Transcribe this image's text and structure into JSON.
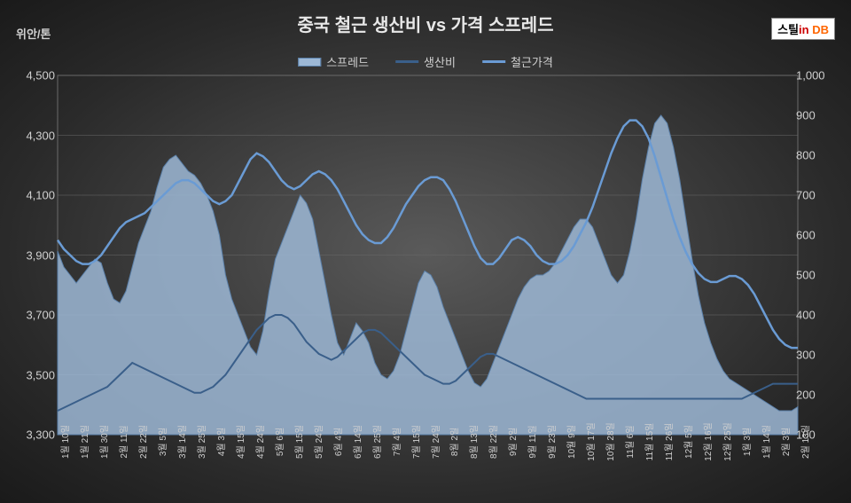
{
  "title": "중국 철근 생산비 vs 가격 스프레드",
  "y_label": "위안/톤",
  "logo": {
    "black": "스틸",
    "red": "in",
    "orange": "DB"
  },
  "legend": [
    {
      "label": "스프레드",
      "type": "area",
      "fill": "#9db8d6",
      "stroke": "#5a7fa8"
    },
    {
      "label": "생산비",
      "type": "line",
      "color": "#3a5f8a"
    },
    {
      "label": "철근가격",
      "type": "line",
      "color": "#6a9bd4"
    }
  ],
  "chart": {
    "type": "dual-axis-area-line",
    "background_gradient": [
      "#5a5a5a",
      "#2a2a2a",
      "#1a1a1a"
    ],
    "grid_color": "#6a6a6a",
    "grid_width": 0.5,
    "text_color": "#d0d0d0",
    "title_fontsize": 20,
    "label_fontsize": 13,
    "xtick_fontsize": 10,
    "left_axis": {
      "min": 3300,
      "max": 4500,
      "step": 200
    },
    "right_axis": {
      "min": 100,
      "max": 1000,
      "step": 100
    },
    "x_labels": [
      "1월 10일",
      "1월 21일",
      "1월 30일",
      "2월 11일",
      "2월 22일",
      "3월 5일",
      "3월 14일",
      "3월 25일",
      "4월 3일",
      "4월 15일",
      "4월 24일",
      "5월 6일",
      "5월 15일",
      "5월 24일",
      "6월 4일",
      "6월 14일",
      "6월 25일",
      "7월 4일",
      "7월 15일",
      "7월 24일",
      "8월 2일",
      "8월 13일",
      "8월 22일",
      "9월 2일",
      "9월 11일",
      "9월 23일",
      "10월 9일",
      "10월 17일",
      "10월 28일",
      "11월 6일",
      "11월 15일",
      "11월 26일",
      "12월 5일",
      "12월 16일",
      "12월 25일",
      "1월 3일",
      "1월 14일",
      "2월 3일",
      "2월 13일"
    ],
    "series": {
      "spread": {
        "axis": "right",
        "fill": "#9db8d6",
        "fill_opacity": 0.85,
        "stroke": "#5a7fa8",
        "stroke_width": 1,
        "values": [
          560,
          520,
          500,
          480,
          500,
          520,
          540,
          530,
          480,
          440,
          430,
          460,
          520,
          580,
          620,
          660,
          720,
          770,
          790,
          800,
          780,
          760,
          750,
          730,
          700,
          660,
          600,
          500,
          440,
          400,
          360,
          320,
          300,
          360,
          460,
          540,
          580,
          620,
          660,
          700,
          680,
          640,
          560,
          480,
          400,
          330,
          300,
          340,
          380,
          360,
          330,
          280,
          250,
          240,
          260,
          300,
          360,
          420,
          480,
          510,
          500,
          470,
          420,
          380,
          340,
          300,
          260,
          230,
          220,
          240,
          280,
          320,
          360,
          400,
          440,
          470,
          490,
          500,
          500,
          510,
          530,
          560,
          590,
          620,
          640,
          640,
          620,
          580,
          540,
          500,
          480,
          500,
          560,
          640,
          740,
          820,
          880,
          900,
          880,
          820,
          740,
          640,
          540,
          450,
          380,
          330,
          290,
          260,
          240,
          230,
          220,
          210,
          200,
          190,
          180,
          170,
          160,
          160,
          160,
          170
        ]
      },
      "cost": {
        "axis": "left",
        "color": "#3a5f8a",
        "stroke_width": 2,
        "values": [
          3380,
          3390,
          3400,
          3410,
          3420,
          3430,
          3440,
          3450,
          3460,
          3480,
          3500,
          3520,
          3540,
          3530,
          3520,
          3510,
          3500,
          3490,
          3480,
          3470,
          3460,
          3450,
          3440,
          3440,
          3450,
          3460,
          3480,
          3500,
          3530,
          3560,
          3590,
          3620,
          3650,
          3670,
          3690,
          3700,
          3700,
          3690,
          3670,
          3640,
          3610,
          3590,
          3570,
          3560,
          3550,
          3560,
          3580,
          3600,
          3620,
          3640,
          3650,
          3650,
          3640,
          3620,
          3600,
          3580,
          3560,
          3540,
          3520,
          3500,
          3490,
          3480,
          3470,
          3470,
          3480,
          3500,
          3520,
          3540,
          3560,
          3570,
          3570,
          3560,
          3550,
          3540,
          3530,
          3520,
          3510,
          3500,
          3490,
          3480,
          3470,
          3460,
          3450,
          3440,
          3430,
          3420,
          3420,
          3420,
          3420,
          3420,
          3420,
          3420,
          3420,
          3420,
          3420,
          3420,
          3420,
          3420,
          3420,
          3420,
          3420,
          3420,
          3420,
          3420,
          3420,
          3420,
          3420,
          3420,
          3420,
          3420,
          3420,
          3430,
          3440,
          3450,
          3460,
          3470,
          3470,
          3470,
          3470,
          3470
        ]
      },
      "price": {
        "axis": "left",
        "color": "#6a9bd4",
        "stroke_width": 2.5,
        "values": [
          3950,
          3920,
          3900,
          3880,
          3870,
          3870,
          3880,
          3900,
          3930,
          3960,
          3990,
          4010,
          4020,
          4030,
          4040,
          4060,
          4080,
          4100,
          4120,
          4140,
          4150,
          4150,
          4140,
          4120,
          4100,
          4080,
          4070,
          4080,
          4100,
          4140,
          4180,
          4220,
          4240,
          4230,
          4210,
          4180,
          4150,
          4130,
          4120,
          4130,
          4150,
          4170,
          4180,
          4170,
          4150,
          4120,
          4080,
          4040,
          4000,
          3970,
          3950,
          3940,
          3940,
          3960,
          3990,
          4030,
          4070,
          4100,
          4130,
          4150,
          4160,
          4160,
          4150,
          4120,
          4080,
          4030,
          3980,
          3930,
          3890,
          3870,
          3870,
          3890,
          3920,
          3950,
          3960,
          3950,
          3930,
          3900,
          3880,
          3870,
          3870,
          3880,
          3900,
          3930,
          3970,
          4010,
          4060,
          4120,
          4180,
          4240,
          4290,
          4330,
          4350,
          4350,
          4330,
          4290,
          4230,
          4160,
          4090,
          4020,
          3960,
          3910,
          3870,
          3840,
          3820,
          3810,
          3810,
          3820,
          3830,
          3830,
          3820,
          3800,
          3770,
          3730,
          3690,
          3650,
          3620,
          3600,
          3590,
          3590
        ]
      }
    }
  }
}
